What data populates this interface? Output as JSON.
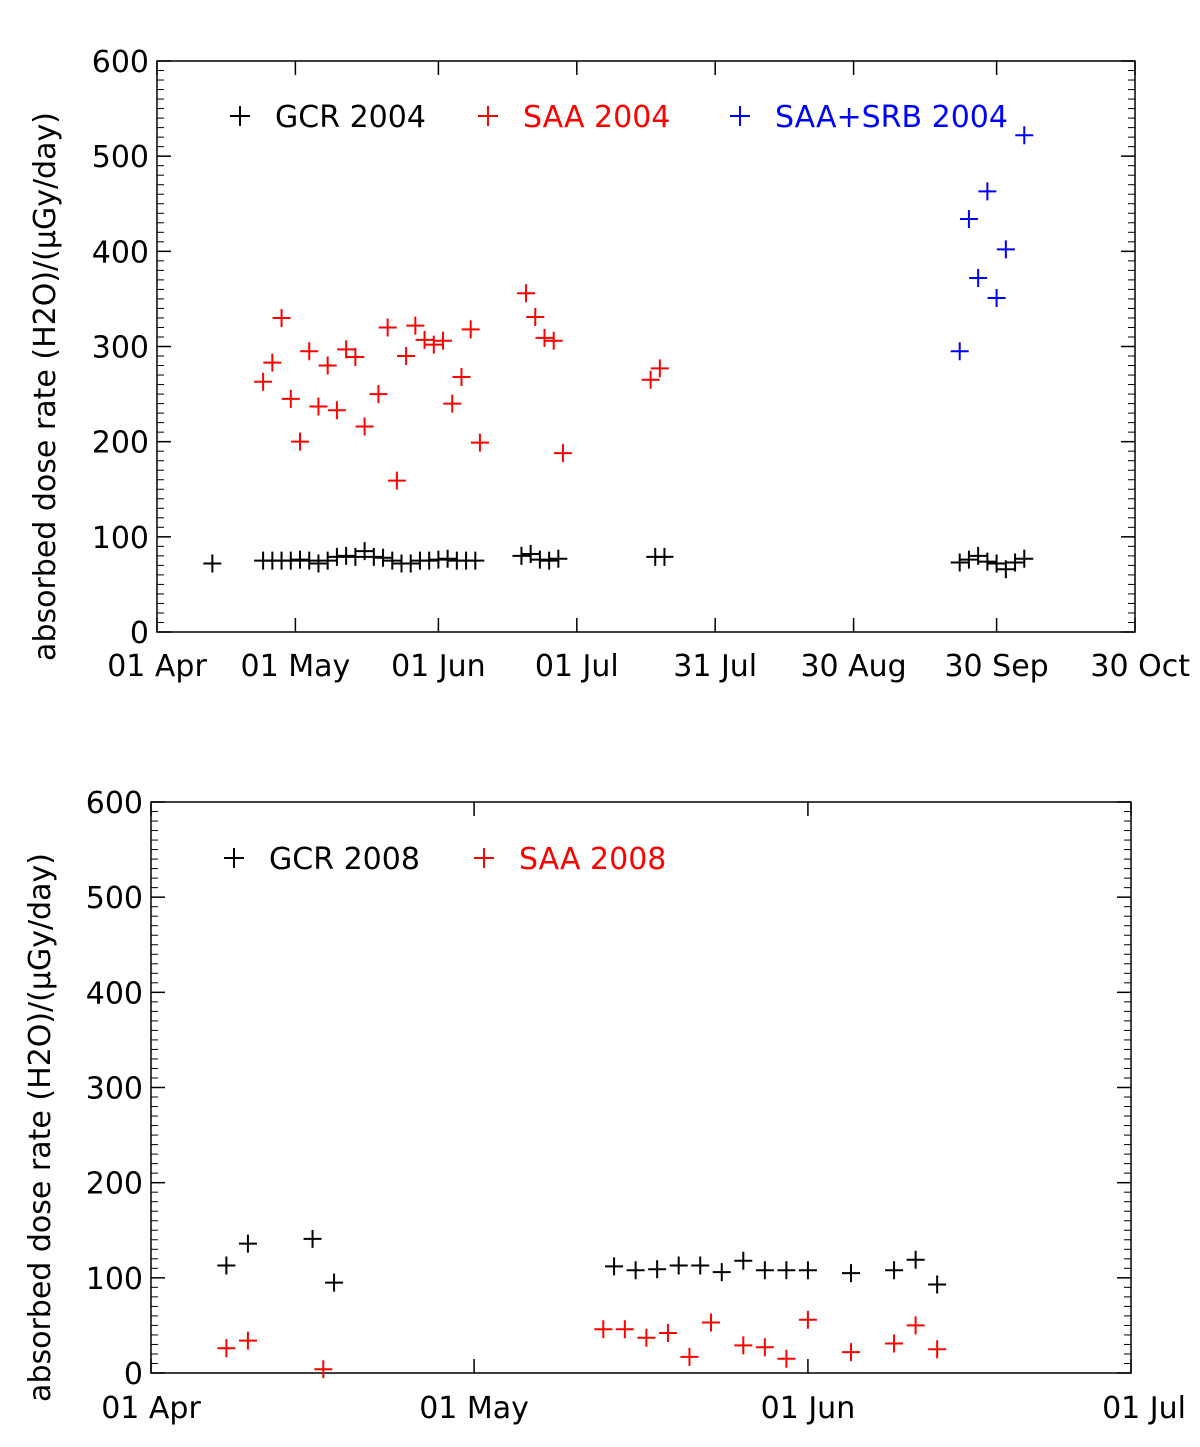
{
  "chart_data": [
    {
      "type": "scatter",
      "marker": "+",
      "ylabel": "absorbed dose rate (H2O)/(μGy/day)",
      "ylim": [
        0,
        600
      ],
      "yticks": [
        0,
        100,
        200,
        300,
        400,
        500,
        600
      ],
      "xlim": [
        0,
        212
      ],
      "xticks": [
        {
          "value": 0,
          "label": "01 Apr"
        },
        {
          "value": 30,
          "label": "01 May"
        },
        {
          "value": 61,
          "label": "01 Jun"
        },
        {
          "value": 91,
          "label": "01 Jul"
        },
        {
          "value": 121,
          "label": "31 Jul"
        },
        {
          "value": 151,
          "label": "30 Aug"
        },
        {
          "value": 182,
          "label": "30 Sep"
        },
        {
          "value": 212,
          "label": "30 Oct"
        }
      ],
      "legend_position": "top",
      "series": [
        {
          "name": "GCR 2004",
          "color": "#000000",
          "points": [
            [
              12,
              72
            ],
            [
              23,
              75
            ],
            [
              25,
              75
            ],
            [
              27,
              75
            ],
            [
              29,
              75
            ],
            [
              31,
              76
            ],
            [
              33,
              75
            ],
            [
              35,
              72
            ],
            [
              37,
              75
            ],
            [
              39,
              79
            ],
            [
              41,
              80
            ],
            [
              43,
              79
            ],
            [
              45,
              85
            ],
            [
              47,
              79
            ],
            [
              49,
              78
            ],
            [
              51,
              75
            ],
            [
              53,
              72
            ],
            [
              55,
              72
            ],
            [
              57,
              75
            ],
            [
              59,
              75
            ],
            [
              61,
              76
            ],
            [
              63,
              77
            ],
            [
              65,
              75
            ],
            [
              67,
              75
            ],
            [
              69,
              75
            ],
            [
              79,
              80
            ],
            [
              81,
              82
            ],
            [
              83,
              76
            ],
            [
              85,
              75
            ],
            [
              87,
              77
            ],
            [
              108,
              79
            ],
            [
              110,
              79
            ],
            [
              174,
              73
            ],
            [
              176,
              76
            ],
            [
              178,
              80
            ],
            [
              180,
              74
            ],
            [
              182,
              72
            ],
            [
              184,
              66
            ],
            [
              186,
              73
            ],
            [
              188,
              77
            ]
          ]
        },
        {
          "name": "SAA 2004",
          "color": "#ff0000",
          "points": [
            [
              23,
              263
            ],
            [
              25,
              283
            ],
            [
              27,
              330
            ],
            [
              29,
              245
            ],
            [
              31,
              200
            ],
            [
              33,
              295
            ],
            [
              35,
              237
            ],
            [
              37,
              280
            ],
            [
              39,
              233
            ],
            [
              41,
              297
            ],
            [
              43,
              289
            ],
            [
              45,
              216
            ],
            [
              48,
              250
            ],
            [
              50,
              320
            ],
            [
              52,
              159
            ],
            [
              54,
              290
            ],
            [
              56,
              322
            ],
            [
              58,
              307
            ],
            [
              60,
              302
            ],
            [
              62,
              306
            ],
            [
              64,
              240
            ],
            [
              66,
              268
            ],
            [
              68,
              318
            ],
            [
              70,
              199
            ],
            [
              80,
              356
            ],
            [
              82,
              331
            ],
            [
              84,
              309
            ],
            [
              86,
              306
            ],
            [
              88,
              188
            ],
            [
              107,
              265
            ],
            [
              109,
              277
            ]
          ]
        },
        {
          "name": "SAA+SRB 2004",
          "color": "#0000ff",
          "points": [
            [
              174,
              295
            ],
            [
              176,
              434
            ],
            [
              178,
              372
            ],
            [
              180,
              463
            ],
            [
              182,
              351
            ],
            [
              184,
              402
            ],
            [
              188,
              522
            ]
          ]
        }
      ]
    },
    {
      "type": "scatter",
      "marker": "+",
      "ylabel": "absorbed dose rate (H2O)/(μGy/day)",
      "ylim": [
        0,
        600
      ],
      "yticks": [
        0,
        100,
        200,
        300,
        400,
        500,
        600
      ],
      "xlim": [
        0,
        91
      ],
      "xticks": [
        {
          "value": 0,
          "label": "01 Apr"
        },
        {
          "value": 30,
          "label": "01 May"
        },
        {
          "value": 61,
          "label": "01 Jun"
        },
        {
          "value": 91,
          "label": "01 Jul"
        }
      ],
      "legend_position": "top",
      "series": [
        {
          "name": "GCR 2008",
          "color": "#000000",
          "points": [
            [
              7,
              113
            ],
            [
              9,
              136
            ],
            [
              15,
              141
            ],
            [
              17,
              95
            ],
            [
              43,
              112
            ],
            [
              45,
              108
            ],
            [
              47,
              109
            ],
            [
              49,
              113
            ],
            [
              51,
              113
            ],
            [
              53,
              106
            ],
            [
              55,
              118
            ],
            [
              57,
              108
            ],
            [
              59,
              108
            ],
            [
              61,
              108
            ],
            [
              65,
              105
            ],
            [
              69,
              108
            ],
            [
              71,
              119
            ],
            [
              73,
              93
            ]
          ]
        },
        {
          "name": "SAA 2008",
          "color": "#ff0000",
          "points": [
            [
              7,
              26
            ],
            [
              9,
              34
            ],
            [
              16,
              4
            ],
            [
              42,
              46
            ],
            [
              44,
              46
            ],
            [
              46,
              37
            ],
            [
              48,
              42
            ],
            [
              50,
              17
            ],
            [
              52,
              53
            ],
            [
              55,
              29
            ],
            [
              57,
              27
            ],
            [
              59,
              15
            ],
            [
              61,
              56
            ],
            [
              65,
              22
            ],
            [
              69,
              31
            ],
            [
              71,
              50
            ],
            [
              73,
              25
            ]
          ]
        }
      ]
    }
  ]
}
